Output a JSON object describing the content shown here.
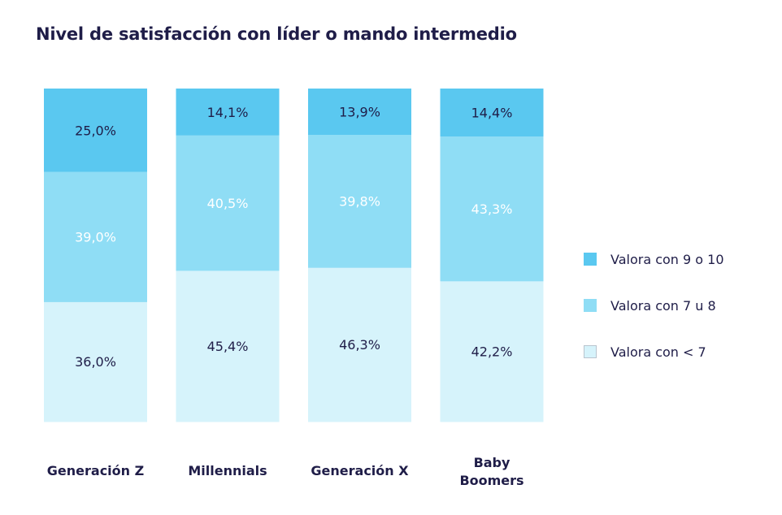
{
  "chart_data": {
    "type": "bar",
    "stacked": true,
    "title": "Nivel de satisfacción con líder o mando intermedio",
    "categories": [
      "Generación  Z",
      "Millennials",
      "Generación X",
      "Baby Boomers"
    ],
    "category_lines": [
      [
        "Generación  Z"
      ],
      [
        "Millennials"
      ],
      [
        "Generación X"
      ],
      [
        "Baby",
        "Boomers"
      ]
    ],
    "series": [
      {
        "name": "Valora con < 7",
        "values": [
          36.0,
          45.4,
          46.3,
          42.2
        ],
        "labels": [
          "36,0%",
          "45,4%",
          "46,3%",
          "42,2%"
        ],
        "color": "#d6f3fb",
        "label_color": "#1f1d48"
      },
      {
        "name": "Valora con 7 u 8",
        "values": [
          39.0,
          40.5,
          39.8,
          43.3
        ],
        "labels": [
          "39,0%",
          "40,5%",
          "39,8%",
          "43,3%"
        ],
        "color": "#8fddf5",
        "label_color": "#ffffff"
      },
      {
        "name": "Valora con 9 o 10",
        "values": [
          25.0,
          14.1,
          13.9,
          14.4
        ],
        "labels": [
          "25,0%",
          "14,1%",
          "13,9%",
          "14,4%"
        ],
        "color": "#5ac8f0",
        "label_color": "#1f1d48"
      }
    ],
    "legend_order": [
      2,
      1,
      0
    ],
    "legend_position": "right",
    "ylim": [
      0,
      100
    ],
    "grid": false,
    "xlabel": "",
    "ylabel": ""
  }
}
